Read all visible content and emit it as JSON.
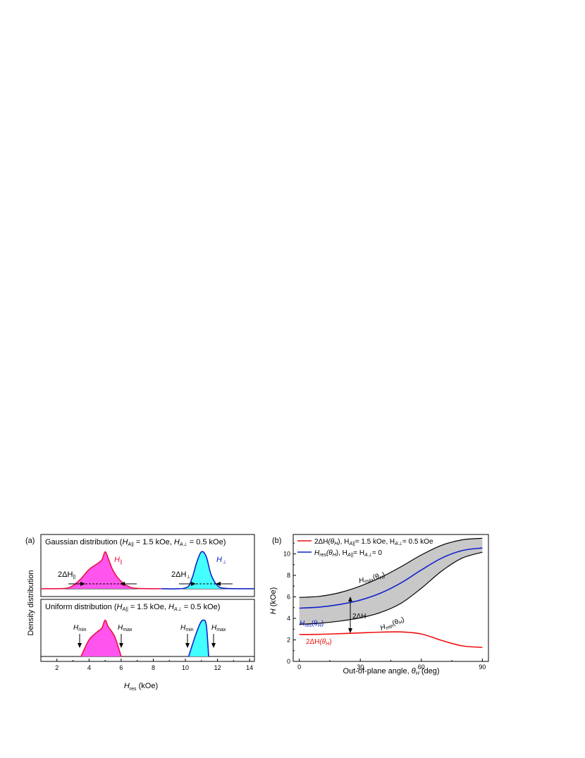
{
  "panel_a": {
    "label": "(a)",
    "ylabel": "Density distribution",
    "xlabel_main": "H",
    "xlabel_sub": "res",
    "xlabel_unit": "(kOe)",
    "x_ticks": [
      "2",
      "4",
      "6",
      "8",
      "10",
      "12",
      "14"
    ],
    "top": {
      "title_prefix": "Gaussian distribution",
      "param1": "= 1.5 kOe,",
      "param2": "= 0.5 kOe)",
      "label_par": "H",
      "label_par_sub": "||",
      "label_perp": "H",
      "label_perp_sub": "⊥",
      "width_par": "2ΔH",
      "width_par_sub": "||",
      "width_perp": "2ΔH",
      "width_perp_sub": "⊥"
    },
    "bottom": {
      "title_prefix": "Uniform distribution",
      "param1": "= 1.5 kOe,",
      "param2": "= 0.5 kOe)",
      "hmin": "H",
      "hmin_sub": "min",
      "hmax": "H",
      "hmax_sub": "max"
    }
  },
  "panel_b": {
    "label": "(b)",
    "ylabel": "H",
    "ylabel_unit": "(kOe)",
    "xlabel": "Out-of-plane angle,",
    "xlabel_unit": "(deg)",
    "x_ticks": [
      "0",
      "30",
      "60",
      "90"
    ],
    "y_ticks": [
      "0",
      "2",
      "4",
      "6",
      "8",
      "10"
    ],
    "legend": [
      {
        "text_a": "2ΔH",
        "text_b": "(θ",
        "text_c": "), H",
        "text_d": "= 1.5 kOe, H",
        "text_e": "= 0.5 kOe",
        "color": "#ee1111"
      },
      {
        "text_a": "H",
        "text_b": "(θ",
        "text_c": "),  H",
        "text_d": "= H",
        "text_e": "= 0",
        "color": "#1122cc"
      }
    ],
    "annot_hmax": "H",
    "annot_hmax_sub": "max",
    "annot_hmin": "H",
    "annot_hmin_sub": "min",
    "annot_hres": "H",
    "annot_hres_sub": "res",
    "annot_width": "2ΔH",
    "annot_2dh": "2ΔH"
  },
  "chart_data": [
    {
      "type": "area",
      "subplot": "Gaussian distribution",
      "xlim": [
        1,
        14.3
      ],
      "series": [
        {
          "name": "H∥",
          "color": "#ee1144",
          "fill": "#ff55ee",
          "x": [
            1.0,
            2.5,
            3.0,
            3.5,
            4.0,
            4.5,
            4.8,
            5.0,
            5.2,
            5.5,
            6.0,
            6.5,
            7.0,
            8.5
          ],
          "y": [
            0.0,
            0.01,
            0.08,
            0.25,
            0.48,
            0.62,
            0.72,
            0.92,
            0.75,
            0.45,
            0.18,
            0.05,
            0.01,
            0.0
          ]
        },
        {
          "name": "H⊥",
          "color": "#1122cc",
          "fill": "#44ffff",
          "x": [
            8.5,
            10.0,
            10.4,
            10.7,
            11.0,
            11.3,
            11.6,
            12.0,
            12.5,
            14.3
          ],
          "y": [
            0.0,
            0.02,
            0.25,
            0.65,
            0.92,
            0.8,
            0.35,
            0.08,
            0.01,
            0.0
          ]
        }
      ]
    },
    {
      "type": "area",
      "subplot": "Uniform distribution",
      "xlim": [
        1,
        14.3
      ],
      "series": [
        {
          "name": "H∥",
          "color": "#ee1144",
          "fill": "#ff55ee",
          "x": [
            3.5,
            4.0,
            4.5,
            4.8,
            5.0,
            5.2,
            5.6,
            6.0
          ],
          "y": [
            0.0,
            0.42,
            0.62,
            0.72,
            0.92,
            0.75,
            0.5,
            0.0
          ]
        },
        {
          "name": "H⊥",
          "color": "#1122cc",
          "fill": "#44ffff",
          "x": [
            10.2,
            10.6,
            10.9,
            11.1,
            11.3,
            11.45
          ],
          "y": [
            0.0,
            0.5,
            0.82,
            0.92,
            0.8,
            0.0
          ]
        }
      ]
    },
    {
      "type": "line",
      "subplot": "(b)",
      "xlabel": "Out-of-plane angle, θH (deg)",
      "ylabel": "H (kOe)",
      "xlim": [
        -3,
        93
      ],
      "ylim": [
        0,
        11.8
      ],
      "x": [
        0,
        10,
        20,
        30,
        40,
        50,
        60,
        70,
        80,
        90
      ],
      "series": [
        {
          "name": "Hmax(θH)",
          "color": "#000000",
          "values": [
            5.95,
            6.05,
            6.4,
            7.0,
            7.8,
            8.8,
            9.9,
            10.8,
            11.3,
            11.45
          ]
        },
        {
          "name": "Hres(θH)",
          "color": "#1122cc",
          "values": [
            4.95,
            5.05,
            5.3,
            5.7,
            6.35,
            7.3,
            8.5,
            9.6,
            10.3,
            10.55
          ]
        },
        {
          "name": "Hmin(θH)",
          "color": "#000000",
          "values": [
            3.45,
            3.55,
            3.75,
            4.05,
            4.55,
            5.4,
            6.8,
            8.4,
            9.6,
            10.15
          ]
        },
        {
          "name": "2ΔH(θH)",
          "color": "#ee1111",
          "values": [
            2.5,
            2.52,
            2.58,
            2.65,
            2.72,
            2.74,
            2.55,
            1.95,
            1.45,
            1.3
          ]
        }
      ]
    }
  ]
}
